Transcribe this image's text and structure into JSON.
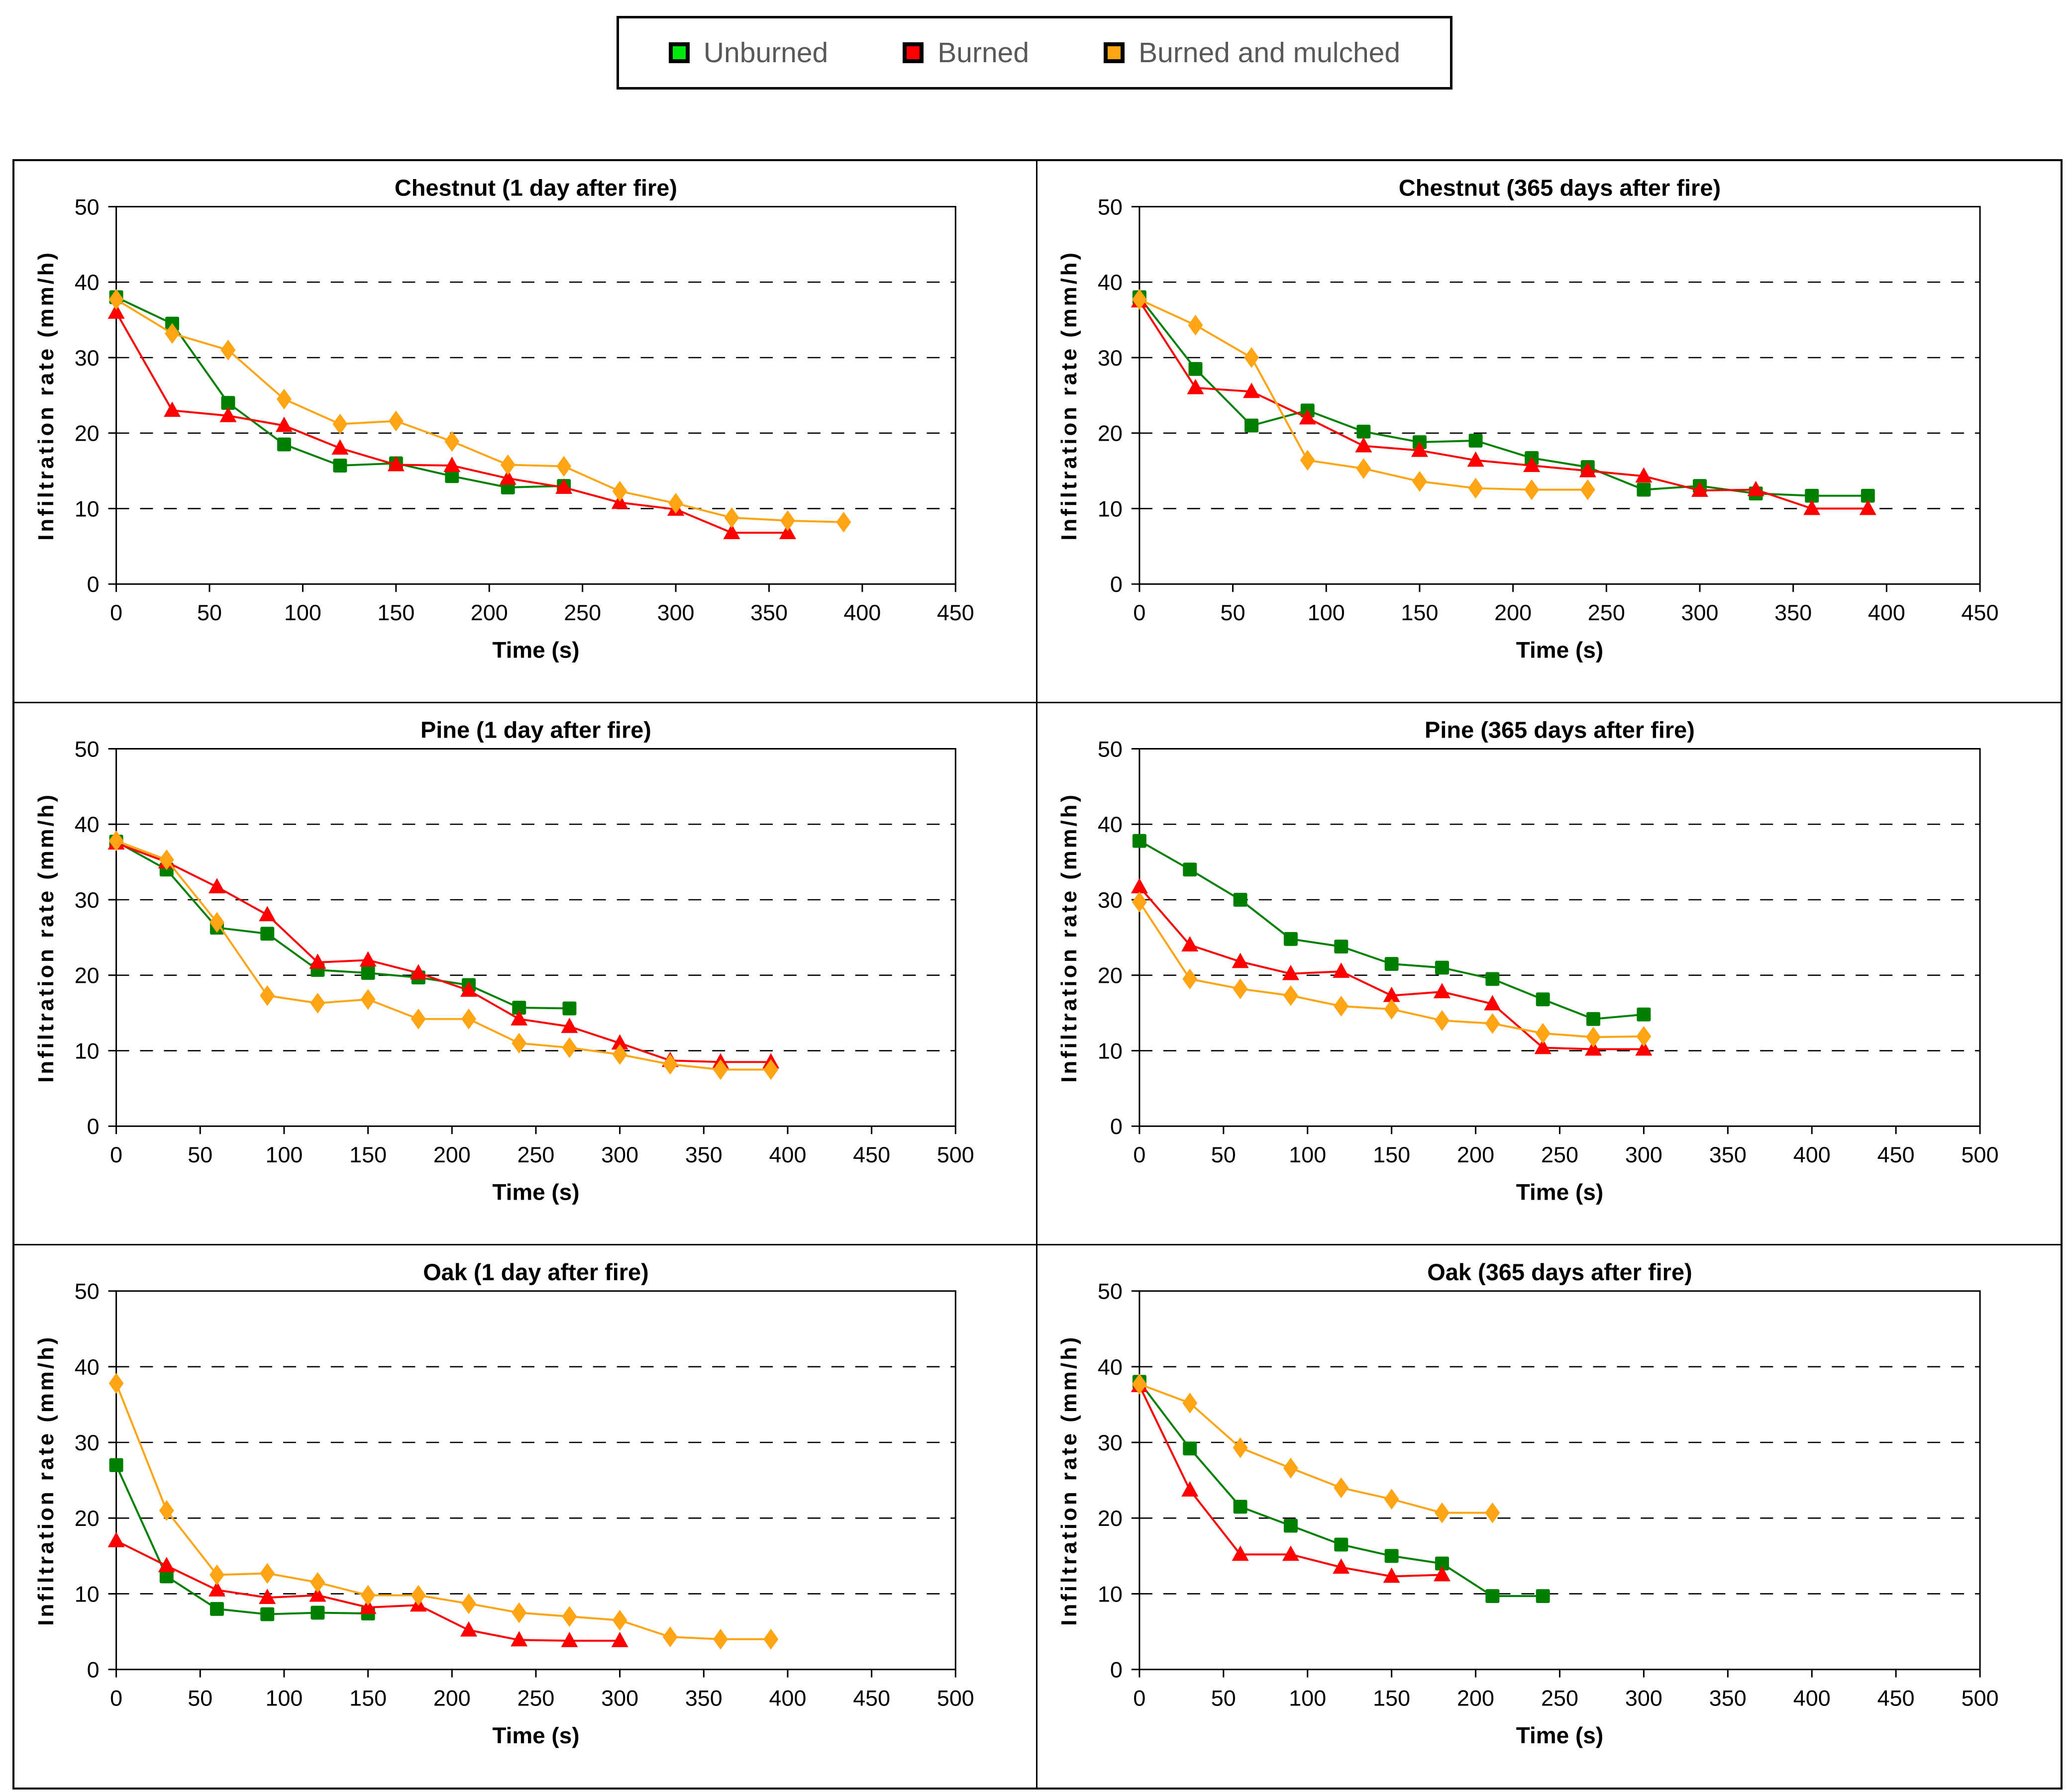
{
  "legend": {
    "items": [
      {
        "label": "Unburned",
        "color": "#00e80c"
      },
      {
        "label": "Burned",
        "color": "#ff0000"
      },
      {
        "label": "Burned and mulched",
        "color": "#ffa413"
      }
    ]
  },
  "series_styles": {
    "Unburned": {
      "color": "#008000",
      "marker": "square"
    },
    "Burned": {
      "color": "#ff0000",
      "marker": "triangle"
    },
    "Burned and mulched": {
      "color": "#ffa413",
      "marker": "diamond"
    }
  },
  "chart_data": [
    {
      "type": "line",
      "title": "Chestnut (1 day after fire)",
      "xlabel": "Time (s)",
      "ylabel": "Infiltration rate (mm/h)",
      "xlim": [
        0,
        450
      ],
      "ylim": [
        0,
        50
      ],
      "xtick_step": 50,
      "ytick_step": 10,
      "grid": "dashed-horizontal",
      "series": [
        {
          "name": "Unburned",
          "points": [
            [
              0,
              38
            ],
            [
              30,
              34.5
            ],
            [
              60,
              24
            ],
            [
              90,
              18.5
            ],
            [
              120,
              15.7
            ],
            [
              150,
              16
            ],
            [
              180,
              14.3
            ],
            [
              210,
              12.8
            ],
            [
              240,
              13
            ]
          ]
        },
        {
          "name": "Burned",
          "points": [
            [
              0,
              36
            ],
            [
              30,
              23
            ],
            [
              60,
              22.3
            ],
            [
              90,
              21
            ],
            [
              120,
              18
            ],
            [
              150,
              15.8
            ],
            [
              180,
              15.7
            ],
            [
              210,
              14
            ],
            [
              240,
              12.8
            ],
            [
              270,
              10.8
            ],
            [
              300,
              9.9
            ],
            [
              330,
              6.8
            ],
            [
              360,
              6.8
            ]
          ]
        },
        {
          "name": "Burned and mulched",
          "points": [
            [
              0,
              37.7
            ],
            [
              30,
              33.2
            ],
            [
              60,
              31
            ],
            [
              90,
              24.5
            ],
            [
              120,
              21.2
            ],
            [
              150,
              21.6
            ],
            [
              180,
              18.9
            ],
            [
              210,
              15.8
            ],
            [
              240,
              15.6
            ],
            [
              270,
              12.3
            ],
            [
              300,
              10.7
            ],
            [
              330,
              8.8
            ],
            [
              360,
              8.4
            ],
            [
              390,
              8.2
            ]
          ]
        }
      ]
    },
    {
      "type": "line",
      "title": "Chestnut (365 days after fire)",
      "xlabel": "Time (s)",
      "ylabel": "Infiltration rate (mm/h)",
      "xlim": [
        0,
        450
      ],
      "ylim": [
        0,
        50
      ],
      "xtick_step": 50,
      "ytick_step": 10,
      "grid": "dashed-horizontal",
      "series": [
        {
          "name": "Unburned",
          "points": [
            [
              0,
              38
            ],
            [
              30,
              28.5
            ],
            [
              60,
              21
            ],
            [
              90,
              23
            ],
            [
              120,
              20.2
            ],
            [
              150,
              18.8
            ],
            [
              180,
              19
            ],
            [
              210,
              16.7
            ],
            [
              240,
              15.5
            ],
            [
              270,
              12.5
            ],
            [
              300,
              13
            ],
            [
              330,
              12
            ],
            [
              360,
              11.7
            ],
            [
              390,
              11.7
            ]
          ]
        },
        {
          "name": "Burned",
          "points": [
            [
              0,
              37.5
            ],
            [
              30,
              26
            ],
            [
              60,
              25.5
            ],
            [
              90,
              22
            ],
            [
              120,
              18.3
            ],
            [
              150,
              17.7
            ],
            [
              180,
              16.4
            ],
            [
              210,
              15.7
            ],
            [
              240,
              15
            ],
            [
              270,
              14.3
            ],
            [
              300,
              12.4
            ],
            [
              330,
              12.5
            ],
            [
              360,
              10
            ],
            [
              390,
              10
            ]
          ]
        },
        {
          "name": "Burned and mulched",
          "points": [
            [
              0,
              37.7
            ],
            [
              30,
              34.3
            ],
            [
              60,
              30
            ],
            [
              90,
              16.4
            ],
            [
              120,
              15.3
            ],
            [
              150,
              13.6
            ],
            [
              180,
              12.7
            ],
            [
              210,
              12.5
            ],
            [
              240,
              12.5
            ]
          ]
        }
      ]
    },
    {
      "type": "line",
      "title": "Pine (1 day after fire)",
      "xlabel": "Time (s)",
      "ylabel": "Infiltration rate (mm/h)",
      "xlim": [
        0,
        500
      ],
      "ylim": [
        0,
        50
      ],
      "xtick_step": 50,
      "ytick_step": 10,
      "grid": "dashed-horizontal",
      "series": [
        {
          "name": "Unburned",
          "points": [
            [
              0,
              37.7
            ],
            [
              30,
              34
            ],
            [
              60,
              26.3
            ],
            [
              90,
              25.5
            ],
            [
              120,
              20.7
            ],
            [
              150,
              20.3
            ],
            [
              180,
              19.7
            ],
            [
              210,
              18.7
            ],
            [
              240,
              15.7
            ],
            [
              270,
              15.6
            ]
          ]
        },
        {
          "name": "Burned",
          "points": [
            [
              0,
              37.5
            ],
            [
              30,
              35
            ],
            [
              60,
              31.7
            ],
            [
              90,
              28
            ],
            [
              120,
              21.7
            ],
            [
              150,
              22
            ],
            [
              180,
              20.3
            ],
            [
              210,
              18
            ],
            [
              240,
              14.2
            ],
            [
              270,
              13.2
            ],
            [
              300,
              11
            ],
            [
              330,
              8.7
            ],
            [
              360,
              8.5
            ],
            [
              390,
              8.5
            ]
          ]
        },
        {
          "name": "Burned and mulched",
          "points": [
            [
              0,
              37.8
            ],
            [
              30,
              35.3
            ],
            [
              60,
              27
            ],
            [
              90,
              17.3
            ],
            [
              120,
              16.3
            ],
            [
              150,
              16.8
            ],
            [
              180,
              14.2
            ],
            [
              210,
              14.2
            ],
            [
              240,
              11
            ],
            [
              270,
              10.4
            ],
            [
              300,
              9.5
            ],
            [
              330,
              8.2
            ],
            [
              360,
              7.5
            ],
            [
              390,
              7.5
            ]
          ]
        }
      ]
    },
    {
      "type": "line",
      "title": "Pine (365 days after fire)",
      "xlabel": "Time (s)",
      "ylabel": "Infiltration rate (mm/h)",
      "xlim": [
        0,
        500
      ],
      "ylim": [
        0,
        50
      ],
      "xtick_step": 50,
      "ytick_step": 10,
      "grid": "dashed-horizontal",
      "series": [
        {
          "name": "Unburned",
          "points": [
            [
              0,
              37.8
            ],
            [
              30,
              34
            ],
            [
              60,
              30
            ],
            [
              90,
              24.8
            ],
            [
              120,
              23.8
            ],
            [
              150,
              21.5
            ],
            [
              180,
              21
            ],
            [
              210,
              19.5
            ],
            [
              240,
              16.8
            ],
            [
              270,
              14.2
            ],
            [
              300,
              14.8
            ]
          ]
        },
        {
          "name": "Burned",
          "points": [
            [
              0,
              31.7
            ],
            [
              30,
              24
            ],
            [
              60,
              21.8
            ],
            [
              90,
              20.2
            ],
            [
              120,
              20.5
            ],
            [
              150,
              17.3
            ],
            [
              180,
              17.8
            ],
            [
              210,
              16.2
            ],
            [
              240,
              10.4
            ],
            [
              270,
              10.2
            ],
            [
              300,
              10.2
            ]
          ]
        },
        {
          "name": "Burned and mulched",
          "points": [
            [
              0,
              29.7
            ],
            [
              30,
              19.5
            ],
            [
              60,
              18.2
            ],
            [
              90,
              17.3
            ],
            [
              120,
              15.9
            ],
            [
              150,
              15.5
            ],
            [
              180,
              14
            ],
            [
              210,
              13.6
            ],
            [
              240,
              12.3
            ],
            [
              270,
              11.8
            ],
            [
              300,
              11.9
            ]
          ]
        }
      ]
    },
    {
      "type": "line",
      "title": "Oak (1 day after fire)",
      "xlabel": "Time (s)",
      "ylabel": "Infiltration rate (mm/h)",
      "xlim": [
        0,
        500
      ],
      "ylim": [
        0,
        50
      ],
      "xtick_step": 50,
      "ytick_step": 10,
      "grid": "dashed-horizontal",
      "series": [
        {
          "name": "Unburned",
          "points": [
            [
              0,
              27
            ],
            [
              30,
              12.3
            ],
            [
              60,
              8
            ],
            [
              90,
              7.3
            ],
            [
              120,
              7.5
            ],
            [
              150,
              7.4
            ]
          ]
        },
        {
          "name": "Burned",
          "points": [
            [
              0,
              17
            ],
            [
              30,
              13.7
            ],
            [
              60,
              10.5
            ],
            [
              90,
              9.5
            ],
            [
              120,
              9.8
            ],
            [
              150,
              8.2
            ],
            [
              180,
              8.5
            ],
            [
              210,
              5.2
            ],
            [
              240,
              3.9
            ],
            [
              270,
              3.8
            ],
            [
              300,
              3.8
            ]
          ]
        },
        {
          "name": "Burned and mulched",
          "points": [
            [
              0,
              37.8
            ],
            [
              30,
              21
            ],
            [
              60,
              12.5
            ],
            [
              90,
              12.7
            ],
            [
              120,
              11.5
            ],
            [
              150,
              9.8
            ],
            [
              180,
              9.8
            ],
            [
              210,
              8.7
            ],
            [
              240,
              7.5
            ],
            [
              270,
              7
            ],
            [
              300,
              6.5
            ],
            [
              330,
              4.3
            ],
            [
              360,
              4
            ],
            [
              390,
              4
            ]
          ]
        }
      ]
    },
    {
      "type": "line",
      "title": "Oak (365 days after fire)",
      "xlabel": "Time (s)",
      "ylabel": "Infiltration rate (mm/h)",
      "xlim": [
        0,
        500
      ],
      "ylim": [
        0,
        50
      ],
      "xtick_step": 50,
      "ytick_step": 10,
      "grid": "dashed-horizontal",
      "series": [
        {
          "name": "Unburned",
          "points": [
            [
              0,
              38
            ],
            [
              30,
              29.2
            ],
            [
              60,
              21.5
            ],
            [
              90,
              19
            ],
            [
              120,
              16.5
            ],
            [
              150,
              15
            ],
            [
              180,
              14
            ],
            [
              210,
              9.7
            ],
            [
              240,
              9.7
            ]
          ]
        },
        {
          "name": "Burned",
          "points": [
            [
              0,
              37.5
            ],
            [
              30,
              23.7
            ],
            [
              60,
              15.2
            ],
            [
              90,
              15.2
            ],
            [
              120,
              13.5
            ],
            [
              150,
              12.3
            ],
            [
              180,
              12.5
            ]
          ]
        },
        {
          "name": "Burned and mulched",
          "points": [
            [
              0,
              37.7
            ],
            [
              30,
              35.2
            ],
            [
              60,
              29.3
            ],
            [
              90,
              26.6
            ],
            [
              120,
              24
            ],
            [
              150,
              22.5
            ],
            [
              180,
              20.7
            ],
            [
              210,
              20.7
            ]
          ]
        }
      ]
    }
  ]
}
